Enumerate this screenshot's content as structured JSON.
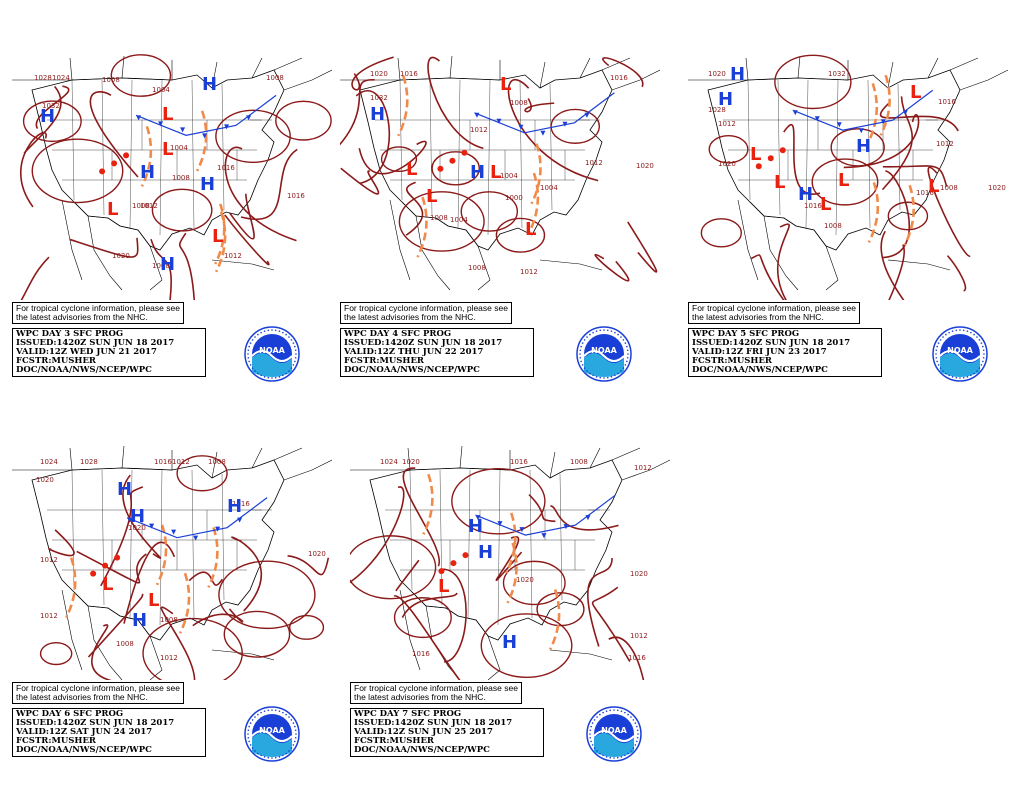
{
  "tropical_note": {
    "line1": "For tropical cyclone information, please see",
    "line2": "the latest advisories from the NHC."
  },
  "colors": {
    "isobar": "#8b1a1a",
    "high": "#1a3fd6",
    "low": "#e8220f",
    "trough": "#f08a4b",
    "cold_front": "#1a3fd6",
    "warm_front": "#e8220f",
    "occluded_front": "#8a2be2",
    "map_lines": "#000000"
  },
  "panels": [
    {
      "id": "day3",
      "title": "WPC DAY 3 SFC PROG",
      "issued": "ISSUED:1420Z SUN JUN 18 2017",
      "valid": "VALID:12Z WED JUN 21 2017",
      "forecaster": "FCSTR:MUSHER",
      "agency": "DOC/NOAA/NWS/NCEP/WPC",
      "isobar_labels": [
        "1028",
        "1024",
        "1032",
        "1008",
        "1004",
        "1004",
        "1008",
        "1012",
        "1016",
        "1008",
        "1016",
        "1020",
        "1008",
        "1012",
        "1008"
      ],
      "highs": 5,
      "lows": 5
    },
    {
      "id": "day4",
      "title": "WPC DAY 4 SFC PROG",
      "issued": "ISSUED:1420Z SUN JUN 18 2017",
      "valid": "VALID:12Z THU JUN 22 2017",
      "forecaster": "FCSTR:MUSHER",
      "agency": "DOC/NOAA/NWS/NCEP/WPC",
      "isobar_labels": [
        "1020",
        "1016",
        "1032",
        "1012",
        "1008",
        "1004",
        "1000",
        "1004",
        "1012",
        "1016",
        "1020",
        "1008",
        "1012",
        "1008",
        "1004"
      ],
      "highs": 2,
      "lows": 5
    },
    {
      "id": "day5",
      "title": "WPC DAY 5 SFC PROG",
      "issued": "ISSUED:1420Z SUN JUN 18 2017",
      "valid": "VALID:12Z FRI JUN 23 2017",
      "forecaster": "FCSTR:MUSHER",
      "agency": "DOC/NOAA/NWS/NCEP/WPC",
      "isobar_labels": [
        "1020",
        "1032",
        "1028",
        "1012",
        "1020",
        "1016",
        "1008",
        "1016",
        "1020",
        "1016",
        "1008",
        "1012"
      ],
      "highs": 4,
      "lows": 6
    },
    {
      "id": "day6",
      "title": "WPC DAY 6 SFC PROG",
      "issued": "ISSUED:1420Z SUN JUN 18 2017",
      "valid": "VALID:12Z SAT JUN 24 2017",
      "forecaster": "FCSTR:MUSHER",
      "agency": "DOC/NOAA/NWS/NCEP/WPC",
      "isobar_labels": [
        "1024",
        "1028",
        "1020",
        "1016",
        "1012",
        "1008",
        "1020",
        "1012",
        "1016",
        "1012",
        "1008",
        "1012",
        "1020",
        "1008"
      ],
      "highs": 4,
      "lows": 2
    },
    {
      "id": "day7",
      "title": "WPC DAY 7 SFC PROG",
      "issued": "ISSUED:1420Z SUN JUN 18 2017",
      "valid": "VALID:12Z SUN JUN 25 2017",
      "forecaster": "FCSTR:MUSHER",
      "agency": "DOC/NOAA/NWS/NCEP/WPC",
      "isobar_labels": [
        "1024",
        "1020",
        "1016",
        "1008",
        "1012",
        "1020",
        "1016",
        "1012",
        "1020",
        "1016"
      ],
      "highs": 4,
      "lows": 1
    }
  ],
  "logo_text": "NOAA"
}
